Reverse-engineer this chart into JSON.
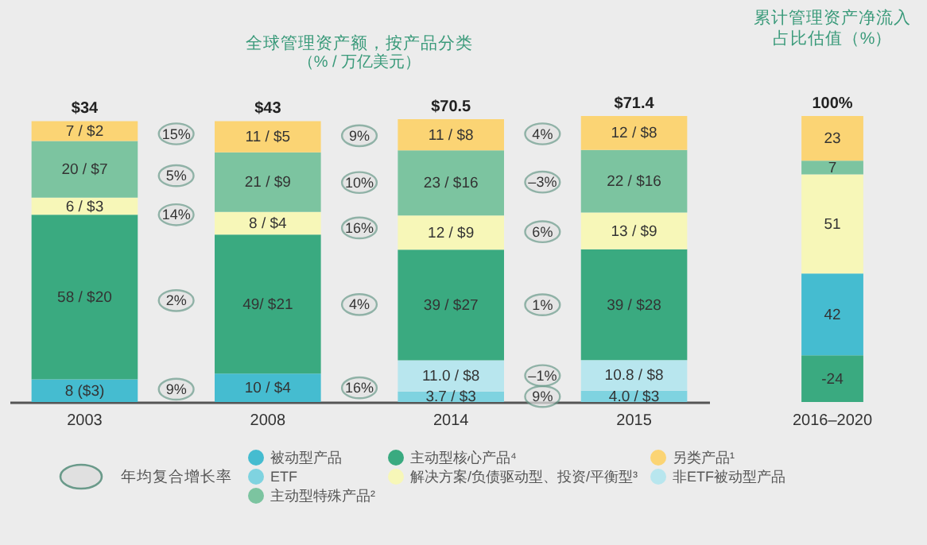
{
  "chart_data": [
    {
      "type": "bar",
      "title": "全球管理资产额，按产品分类",
      "subtitle": "（% / 万亿美元）",
      "stacked": true,
      "categories": [
        "2003",
        "2008",
        "2014",
        "2015"
      ],
      "legend": "bottom",
      "legend_title": "年均复合增长率",
      "series": [
        {
          "name": "被动型产品",
          "color": "#45bcd0",
          "values": [
            8,
            10,
            null,
            null
          ],
          "value_labels": [
            "8 ($3)",
            "10 / $4",
            null,
            null
          ]
        },
        {
          "name": "ETF",
          "color": "#7fd3e0",
          "values": [
            null,
            null,
            3.7,
            4.0
          ],
          "value_labels": [
            null,
            null,
            "3.7 / $3",
            "4.0 / $3"
          ]
        },
        {
          "name": "非ETF被动型产品",
          "color": "#b8e6ee",
          "values": [
            null,
            null,
            11.0,
            10.8
          ],
          "value_labels": [
            null,
            null,
            "11.0 / $8",
            "10.8 / $8"
          ]
        },
        {
          "name": "主动型核心产品⁴",
          "color": "#3aaa80",
          "values": [
            58,
            49,
            39,
            39
          ],
          "value_labels": [
            "58 / $20",
            "49/ $21",
            "39 / $27",
            "39 / $28"
          ]
        },
        {
          "name": "解决方案/负债驱动型、投资/平衡型³",
          "color": "#f7f7b8",
          "values": [
            6,
            8,
            12,
            13
          ],
          "value_labels": [
            "6 / $3",
            "8 / $4",
            "12 / $9",
            "13 / $9"
          ]
        },
        {
          "name": "主动型特殊产品²",
          "color": "#7cc4a0",
          "values": [
            20,
            21,
            23,
            22
          ],
          "value_labels": [
            "20 / $7",
            "21 / $9",
            "23 / $16",
            "22 / $16"
          ]
        },
        {
          "name": "另类产品¹",
          "color": "#fbd474",
          "values": [
            7,
            11,
            11,
            12
          ],
          "value_labels": [
            "7 / $2",
            "11 / $5",
            "11 / $8",
            "12 / $8"
          ]
        }
      ],
      "annotations": [
        {
          "text": "$34",
          "x": "2003",
          "y": 99
        },
        {
          "text": "$43",
          "x": "2008",
          "y": 99
        },
        {
          "text": "$70.5",
          "x": "2014",
          "y": 99.7
        },
        {
          "text": "$71.4",
          "x": "2015",
          "y": 100.8
        },
        "15%",
        "5%",
        "14%",
        "2%",
        "9%",
        "9%",
        "10%",
        "16%",
        "4%",
        "16%",
        "4%",
        "–3%",
        "6%",
        "1%",
        "–1%",
        "9%"
      ]
    },
    {
      "type": "bar",
      "title": "累计管理资产净流入占比估值（%）",
      "stacked": true,
      "categories": [
        "2016–2020"
      ],
      "data_labels": true,
      "series": [
        {
          "color": "#3aaa80",
          "values": [
            -24
          ]
        },
        {
          "color": "#45bcd0",
          "values": [
            42
          ]
        },
        {
          "color": "#f7f7b8",
          "values": [
            51
          ]
        },
        {
          "color": "#7cc4a0",
          "values": [
            7
          ]
        },
        {
          "color": "#fbd474",
          "values": [
            23
          ]
        }
      ],
      "annotations": [
        {
          "text": "100%",
          "x": "2016–2020",
          "y": 123
        }
      ]
    }
  ]
}
